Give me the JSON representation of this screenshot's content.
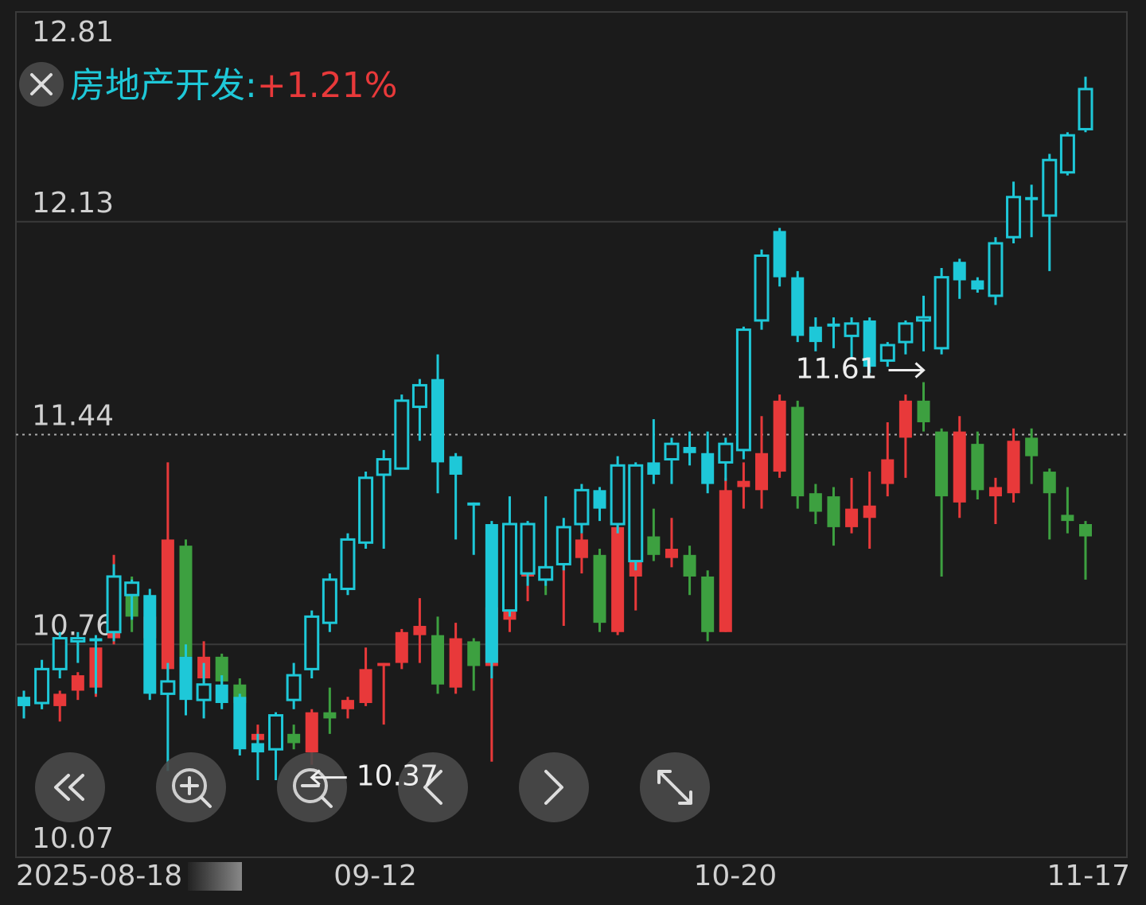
{
  "chart_data": {
    "type": "candlestick",
    "categories": [
      "2025-08-18",
      null,
      null,
      null,
      null,
      null,
      null,
      null,
      null,
      null,
      null,
      null,
      null,
      null,
      null,
      null,
      null,
      null,
      null,
      "09-12",
      null,
      null,
      null,
      null,
      null,
      null,
      null,
      null,
      null,
      null,
      null,
      null,
      null,
      null,
      null,
      null,
      null,
      null,
      null,
      "10-20",
      null,
      null,
      null,
      null,
      null,
      null,
      null,
      null,
      null,
      null,
      null,
      null,
      null,
      null,
      null,
      null,
      null,
      null,
      null,
      "11-17"
    ],
    "ylim": [
      10.07,
      12.81
    ],
    "yticks": [
      12.81,
      12.13,
      11.44,
      10.76,
      10.07
    ],
    "reference_line": 11.44,
    "grid": true,
    "series": [
      {
        "up_color": "#e8393a",
        "down_color": "#3da040",
        "open": [
          10.59,
          10.61,
          10.56,
          10.61,
          10.62,
          10.78,
          10.96,
          10.78,
          10.68,
          11.08,
          10.65,
          10.72,
          10.63,
          10.45,
          10.44,
          10.47,
          10.41,
          10.54,
          10.55,
          10.57,
          10.69,
          10.7,
          10.79,
          10.79,
          10.62,
          10.77,
          10.69,
          10.84,
          10.98,
          11.01,
          11.04,
          11.04,
          11.05,
          10.8,
          10.98,
          11.11,
          11.04,
          11.05,
          10.98,
          10.8,
          11.27,
          11.26,
          11.32,
          11.53,
          11.25,
          11.24,
          11.14,
          11.17,
          11.28,
          11.43,
          11.55,
          11.45,
          11.22,
          11.41,
          11.24,
          11.25,
          11.43,
          11.32,
          11.18,
          11.15
        ],
        "high": [
          10.6,
          10.63,
          10.61,
          10.67,
          10.78,
          11.05,
          10.98,
          10.88,
          11.35,
          11.1,
          10.77,
          10.73,
          10.65,
          10.5,
          10.5,
          10.5,
          10.55,
          10.62,
          10.59,
          10.75,
          10.7,
          10.81,
          10.91,
          10.85,
          10.83,
          10.78,
          10.9,
          11.0,
          11.1,
          11.02,
          11.1,
          11.12,
          11.07,
          11.15,
          11.14,
          11.2,
          11.17,
          11.08,
          11.0,
          11.3,
          11.35,
          11.5,
          11.57,
          11.55,
          11.28,
          11.27,
          11.3,
          11.32,
          11.48,
          11.57,
          11.61,
          11.46,
          11.5,
          11.45,
          11.3,
          11.46,
          11.46,
          11.33,
          11.27,
          11.16
        ],
        "low": [
          10.54,
          10.55,
          10.51,
          10.58,
          10.59,
          10.76,
          10.8,
          10.72,
          10.6,
          10.68,
          10.6,
          10.6,
          10.52,
          10.41,
          10.4,
          10.42,
          10.37,
          10.47,
          10.52,
          10.56,
          10.5,
          10.68,
          10.7,
          10.6,
          10.6,
          10.61,
          10.38,
          10.8,
          10.9,
          10.92,
          10.82,
          10.99,
          10.8,
          10.79,
          10.87,
          11.03,
          11.01,
          10.92,
          10.77,
          10.8,
          11.2,
          11.2,
          11.3,
          11.2,
          11.15,
          11.08,
          11.12,
          11.07,
          11.24,
          11.3,
          11.45,
          10.98,
          11.17,
          11.23,
          11.15,
          11.22,
          11.28,
          11.1,
          11.12,
          10.97
        ],
        "close": [
          10.56,
          10.57,
          10.6,
          10.66,
          10.75,
          10.97,
          10.85,
          10.85,
          11.1,
          10.72,
          10.72,
          10.64,
          10.57,
          10.47,
          10.47,
          10.44,
          10.54,
          10.52,
          10.58,
          10.68,
          10.7,
          10.8,
          10.82,
          10.63,
          10.78,
          10.69,
          10.88,
          10.94,
          11.0,
          10.97,
          11.05,
          11.1,
          10.83,
          11.14,
          11.12,
          11.05,
          11.07,
          10.98,
          10.8,
          11.26,
          11.29,
          11.38,
          11.55,
          11.24,
          11.19,
          11.14,
          11.2,
          11.21,
          11.36,
          11.55,
          11.48,
          11.24,
          11.45,
          11.26,
          11.27,
          11.42,
          11.37,
          11.25,
          11.16,
          11.11
        ]
      },
      {
        "name": "房地产开发:",
        "color": "#1ec8d8",
        "change": 1.21,
        "change_label": "+1.21%",
        "change_color": "#e8393a",
        "open": [
          10.59,
          10.57,
          10.68,
          10.77,
          10.78,
          10.8,
          10.92,
          10.92,
          10.6,
          10.72,
          10.58,
          10.63,
          10.59,
          10.44,
          10.42,
          10.58,
          10.68,
          10.83,
          10.94,
          11.09,
          11.31,
          11.33,
          11.53,
          11.62,
          11.37,
          11.22,
          11.15,
          10.87,
          10.99,
          10.97,
          11.02,
          11.15,
          11.26,
          11.15,
          11.03,
          11.35,
          11.36,
          11.4,
          11.38,
          11.35,
          11.39,
          11.81,
          12.1,
          11.95,
          11.79,
          11.8,
          11.76,
          11.81,
          11.68,
          11.74,
          11.81,
          11.72,
          12.0,
          11.94,
          11.89,
          12.08,
          12.21,
          12.15,
          12.29,
          12.43
        ],
        "high": [
          10.61,
          10.71,
          10.8,
          10.8,
          10.79,
          11.02,
          10.97,
          10.94,
          10.7,
          10.76,
          10.7,
          10.66,
          10.6,
          10.47,
          10.54,
          10.7,
          10.87,
          10.99,
          11.12,
          11.32,
          11.39,
          11.57,
          11.62,
          11.7,
          11.38,
          11.22,
          11.16,
          11.24,
          11.16,
          11.24,
          11.17,
          11.28,
          11.27,
          11.37,
          11.35,
          11.49,
          11.43,
          11.45,
          11.45,
          11.43,
          11.79,
          12.04,
          12.11,
          11.97,
          11.82,
          11.82,
          11.82,
          11.82,
          11.74,
          11.81,
          11.89,
          11.98,
          12.01,
          11.95,
          12.08,
          12.26,
          12.25,
          12.35,
          12.42,
          12.6
        ],
        "low": [
          10.52,
          10.55,
          10.65,
          10.7,
          10.6,
          10.77,
          10.84,
          10.58,
          10.35,
          10.53,
          10.52,
          10.55,
          10.4,
          10.32,
          10.32,
          10.55,
          10.65,
          10.8,
          10.92,
          11.07,
          11.07,
          11.33,
          11.42,
          11.25,
          11.1,
          11.05,
          10.65,
          10.85,
          10.95,
          10.95,
          11.0,
          11.12,
          11.16,
          11.12,
          11.0,
          11.28,
          11.28,
          11.34,
          11.25,
          11.29,
          11.36,
          11.78,
          11.92,
          11.74,
          11.71,
          11.72,
          11.69,
          11.64,
          11.66,
          11.7,
          11.71,
          11.7,
          11.88,
          11.9,
          11.86,
          12.06,
          12.08,
          11.97,
          12.28,
          12.42
        ],
        "close": [
          10.56,
          10.68,
          10.78,
          10.78,
          10.77,
          10.98,
          10.96,
          10.6,
          10.64,
          10.58,
          10.63,
          10.57,
          10.42,
          10.41,
          10.53,
          10.66,
          10.85,
          10.97,
          11.1,
          11.3,
          11.36,
          11.55,
          11.6,
          11.35,
          11.31,
          11.21,
          10.7,
          11.15,
          11.15,
          11.01,
          11.14,
          11.26,
          11.2,
          11.34,
          11.34,
          11.31,
          11.41,
          11.38,
          11.28,
          11.41,
          11.78,
          12.02,
          11.95,
          11.76,
          11.74,
          11.79,
          11.8,
          11.66,
          11.73,
          11.8,
          11.82,
          11.95,
          11.94,
          11.91,
          12.06,
          12.21,
          12.2,
          12.33,
          12.41,
          12.56
        ]
      }
    ]
  }
}
